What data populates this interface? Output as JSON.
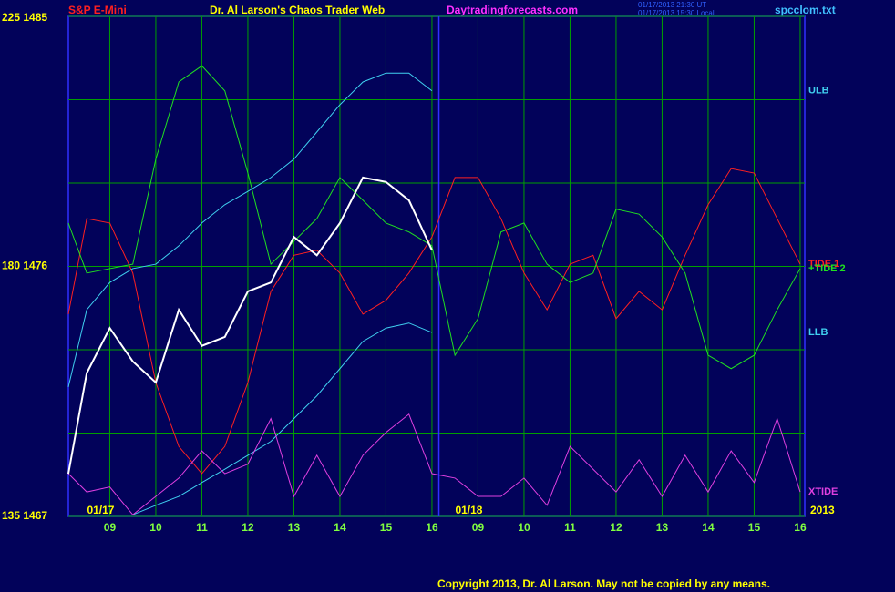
{
  "chart_data": {
    "type": "line",
    "header": {
      "instrument": "S&P E-Mini",
      "title": "Dr. Al Larson's Chaos Trader Web",
      "site": "Daytradingforecasts.com",
      "time_ut": "01/17/2013 21:30 UT",
      "time_local": "01/17/2013 15:30 Local",
      "file": "spcclom.txt"
    },
    "footer": "Copyright 2013, Dr. Al Larson. May not be copied by any means.",
    "days": [
      "01/17",
      "01/18"
    ],
    "year": "2013",
    "x": [
      0.1,
      0.5,
      1,
      1.5,
      2,
      2.5,
      3,
      3.5,
      4,
      4.5,
      5,
      5.5,
      6,
      6.5,
      7,
      7.5,
      8,
      8.5,
      9,
      9.5,
      10,
      10.5,
      11,
      11.5,
      12,
      12.5,
      13,
      13.5,
      14,
      14.5,
      15,
      15.5,
      16
    ],
    "xlim": [
      0.1,
      16.1
    ],
    "xticks": [
      {
        "value": 1,
        "label": "09"
      },
      {
        "value": 2,
        "label": "10"
      },
      {
        "value": 3,
        "label": "11"
      },
      {
        "value": 4,
        "label": "12"
      },
      {
        "value": 5,
        "label": "13"
      },
      {
        "value": 6,
        "label": "14"
      },
      {
        "value": 7,
        "label": "15"
      },
      {
        "value": 8,
        "label": "16"
      },
      {
        "value": 9,
        "label": "09"
      },
      {
        "value": 10,
        "label": "10"
      },
      {
        "value": 11,
        "label": "11"
      },
      {
        "value": 12,
        "label": "12"
      },
      {
        "value": 13,
        "label": "13"
      },
      {
        "value": 14,
        "label": "14"
      },
      {
        "value": 15,
        "label": "15"
      },
      {
        "value": 16,
        "label": "16"
      }
    ],
    "now": 8.15,
    "ylim": [
      135,
      225
    ],
    "yticks": [
      {
        "value": 225,
        "label": "225  1485"
      },
      {
        "value": 180,
        "label": "180  1476"
      },
      {
        "value": 135,
        "label": "135  1467"
      }
    ],
    "ygrid": [
      150,
      165,
      195,
      210
    ],
    "grid": true,
    "series": [
      {
        "name": "TIDE 1",
        "color": "#ff2020",
        "values": [
          171.4,
          188.6,
          187.8,
          178.8,
          159.1,
          147.6,
          142.7,
          147.6,
          159.1,
          175.5,
          182.0,
          182.9,
          178.8,
          171.4,
          173.9,
          178.8,
          185.3,
          196.0,
          196.0,
          188.6,
          178.8,
          172.2,
          180.4,
          182.0,
          170.6,
          175.5,
          172.2,
          182.0,
          191.1,
          197.6,
          196.8,
          188.6,
          180.4
        ]
      },
      {
        "name": "+TIDE 2",
        "color": "#20e020",
        "values": [
          187.8,
          178.8,
          179.6,
          180.4,
          199.3,
          213.2,
          216.1,
          211.6,
          196.8,
          180.4,
          184.5,
          188.6,
          196.0,
          191.9,
          187.8,
          186.2,
          183.7,
          164.0,
          170.6,
          186.2,
          187.8,
          180.4,
          177.1,
          178.8,
          190.3,
          189.4,
          185.3,
          178.8,
          164.0,
          161.6,
          164.0,
          172.2,
          179.6
        ]
      },
      {
        "name": "ULB",
        "color": "#40d0f0",
        "values": [
          158.3,
          172.2,
          177.1,
          179.6,
          180.4,
          183.7,
          187.8,
          191.1,
          193.5,
          196.0,
          199.3,
          204.2,
          209.1,
          213.2,
          214.8,
          214.8,
          211.6,
          null,
          null,
          null,
          null,
          null,
          null,
          null,
          null,
          null,
          null,
          null,
          null,
          null,
          null,
          null,
          null
        ]
      },
      {
        "name": "LLB",
        "color": "#40d0f0",
        "values": [
          null,
          null,
          null,
          135.3,
          137.0,
          138.6,
          141.1,
          143.5,
          146.0,
          148.5,
          152.6,
          156.7,
          161.6,
          166.5,
          168.9,
          169.8,
          168.1,
          null,
          null,
          null,
          null,
          null,
          null,
          null,
          null,
          null,
          null,
          null,
          null,
          null,
          null,
          null,
          null
        ]
      },
      {
        "name": "XTIDE",
        "color": "#e040e0",
        "values": [
          142.7,
          139.4,
          140.3,
          135.3,
          138.6,
          141.9,
          146.8,
          142.7,
          144.4,
          152.6,
          138.6,
          146.0,
          138.6,
          146.0,
          150.1,
          153.4,
          142.7,
          141.9,
          138.6,
          138.6,
          141.9,
          137.0,
          147.6,
          143.5,
          139.4,
          145.2,
          138.6,
          146.0,
          139.4,
          146.8,
          141.1,
          152.6,
          139.4
        ]
      },
      {
        "color": "#ffffff",
        "values": [
          142.7,
          160.8,
          168.9,
          162.9,
          159.1,
          172.2,
          165.7,
          167.3,
          175.5,
          177.1,
          185.3,
          182.0,
          187.8,
          196.0,
          195.2,
          191.9,
          182.9,
          null,
          null,
          null,
          null,
          null,
          null,
          null,
          null,
          null,
          null,
          null,
          null,
          null,
          null,
          null,
          null
        ]
      }
    ]
  }
}
